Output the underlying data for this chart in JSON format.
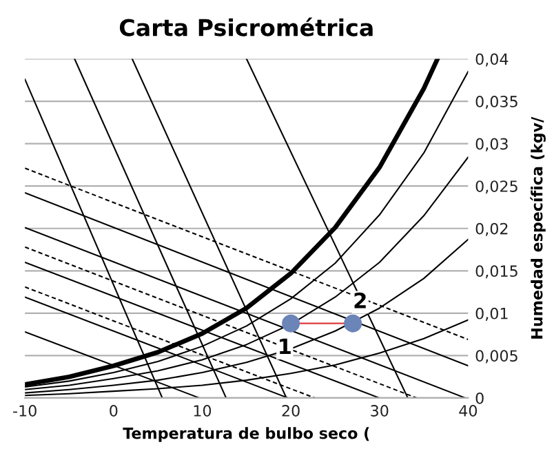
{
  "chart_data": {
    "type": "line",
    "title": "Carta Psicrométrica",
    "xlabel": "Temperatura de bulbo seco (",
    "ylabel": "Humedad específica (kgv/",
    "xlim": [
      -10,
      40
    ],
    "xticks": [
      -10,
      0,
      10,
      20,
      30,
      40
    ],
    "ylim": [
      0,
      0.04
    ],
    "yticks": [
      {
        "value": 0,
        "label": "0"
      },
      {
        "value": 0.005,
        "label": "0,005"
      },
      {
        "value": 0.01,
        "label": "0,01"
      },
      {
        "value": 0.015,
        "label": "0,015"
      },
      {
        "value": 0.02,
        "label": "0,02"
      },
      {
        "value": 0.025,
        "label": "0,025"
      },
      {
        "value": 0.03,
        "label": "0,03"
      },
      {
        "value": 0.035,
        "label": "0,035"
      },
      {
        "value": 0.04,
        "label": "0,04"
      }
    ],
    "grid": "y",
    "marker": "none",
    "series": [
      {
        "color": "#000000",
        "line_style": "solid",
        "x": [
          -10,
          -5,
          0,
          5,
          10,
          15,
          20,
          25,
          30,
          35,
          36.5
        ],
        "values": [
          0.0016,
          0.0025,
          0.0038,
          0.0054,
          0.0076,
          0.0106,
          0.0147,
          0.0201,
          0.0272,
          0.0365,
          0.0399
        ]
      },
      {
        "color": "#000000",
        "line_style": "solid",
        "x": [
          -10,
          -5,
          0,
          5,
          10,
          15,
          20,
          25,
          30,
          35,
          40
        ],
        "values": [
          0.0013,
          0.002,
          0.003,
          0.0043,
          0.0061,
          0.0085,
          0.0117,
          0.0159,
          0.0216,
          0.0289,
          0.0385
        ]
      },
      {
        "color": "#000000",
        "line_style": "solid",
        "x": [
          -10,
          -5,
          0,
          5,
          10,
          15,
          20,
          25,
          30,
          35,
          40
        ],
        "values": [
          0.001,
          0.0015,
          0.0023,
          0.0032,
          0.0045,
          0.0063,
          0.0087,
          0.0119,
          0.016,
          0.0215,
          0.0284
        ]
      },
      {
        "color": "#000000",
        "line_style": "solid",
        "x": [
          -10,
          -5,
          0,
          5,
          10,
          15,
          20,
          25,
          30,
          35,
          40
        ],
        "values": [
          0.0006,
          0.001,
          0.0015,
          0.0021,
          0.003,
          0.0042,
          0.0058,
          0.0079,
          0.0106,
          0.0141,
          0.0187
        ]
      },
      {
        "color": "#000000",
        "line_style": "solid",
        "x": [
          -10,
          -5,
          0,
          5,
          10,
          15,
          20,
          25,
          30,
          35,
          40
        ],
        "values": [
          0.0003,
          0.0005,
          0.0008,
          0.0011,
          0.0015,
          0.0021,
          0.0029,
          0.0039,
          0.0053,
          0.007,
          0.0092
        ]
      },
      {
        "color": "#000000",
        "line_style": "dashed",
        "x": [
          -10,
          40
        ],
        "values": [
          0.0271,
          0.0069
        ]
      },
      {
        "color": "#000000",
        "line_style": "solid",
        "x": [
          -10,
          40
        ],
        "values": [
          0.0242,
          0.0038
        ]
      },
      {
        "color": "#000000",
        "line_style": "solid",
        "x": [
          -10,
          39.7
        ],
        "values": [
          0.0201,
          0
        ]
      },
      {
        "color": "#000000",
        "line_style": "dashed",
        "x": [
          -10,
          34.2
        ],
        "values": [
          0.0178,
          0
        ]
      },
      {
        "color": "#000000",
        "line_style": "solid",
        "x": [
          -10,
          30
        ],
        "values": [
          0.016,
          0
        ]
      },
      {
        "color": "#000000",
        "line_style": "dashed",
        "x": [
          -10,
          22.7
        ],
        "values": [
          0.0131,
          0
        ]
      },
      {
        "color": "#000000",
        "line_style": "solid",
        "x": [
          -10,
          19.7
        ],
        "values": [
          0.0119,
          0
        ]
      },
      {
        "color": "#000000",
        "line_style": "solid",
        "x": [
          -10,
          9.7
        ],
        "values": [
          0.0078,
          0
        ]
      },
      {
        "color": "#000000",
        "line_style": "solid",
        "x": [
          -10,
          5.5
        ],
        "values": [
          0.0376,
          0
        ]
      },
      {
        "color": "#000000",
        "line_style": "solid",
        "x": [
          -4.4,
          12.7
        ],
        "values": [
          0.04,
          0
        ]
      },
      {
        "color": "#000000",
        "line_style": "solid",
        "x": [
          2.1,
          19.5
        ],
        "values": [
          0.04,
          0
        ]
      },
      {
        "color": "#000000",
        "line_style": "solid",
        "x": [
          15,
          33.2
        ],
        "values": [
          0.04,
          0
        ]
      },
      {
        "color": "#e0393e",
        "line_style": "solid",
        "x": [
          20,
          27
        ],
        "values": [
          0.0088,
          0.0088
        ]
      },
      {
        "type": "scatter",
        "color": "#6b85b8",
        "marker": "circle",
        "x": [
          20,
          27
        ],
        "values": [
          0.0088,
          0.0088
        ]
      }
    ],
    "annotations": [
      {
        "text": "1",
        "x": 20,
        "y": 0.0088
      },
      {
        "text": "2",
        "x": 27,
        "y": 0.0088
      }
    ]
  }
}
